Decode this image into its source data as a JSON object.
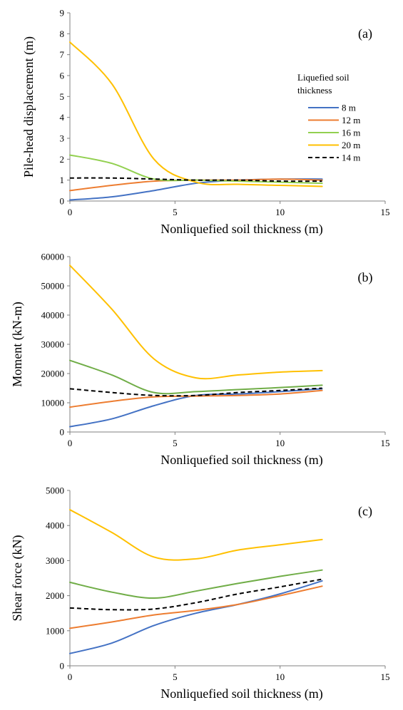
{
  "chart_data": [
    {
      "type": "line",
      "panel_label": "(a)",
      "xlabel": "Nonliquefied soil thickness (m)",
      "ylabel": "Pile-head displacement (m)",
      "xlim": [
        0,
        15
      ],
      "ylim": [
        0,
        9
      ],
      "xticks": [
        "0",
        "5",
        "10",
        "15"
      ],
      "yticks": [
        "0",
        "1",
        "2",
        "3",
        "4",
        "5",
        "6",
        "7",
        "8",
        "9"
      ],
      "legend": {
        "title_line1": "Liquefied soil",
        "title_line2": "thickness",
        "placement": "right-middle"
      },
      "series": [
        {
          "name": "8 m",
          "color": "#4472C4",
          "dashed": false,
          "x": [
            0,
            2,
            4,
            6,
            8,
            10,
            12
          ],
          "y": [
            0.05,
            0.2,
            0.5,
            0.85,
            1.0,
            1.05,
            1.05
          ]
        },
        {
          "name": "12 m",
          "color": "#ED7D31",
          "dashed": false,
          "x": [
            0,
            2,
            4,
            6,
            8,
            10,
            12
          ],
          "y": [
            0.5,
            0.75,
            0.95,
            1.0,
            1.0,
            1.05,
            1.0
          ]
        },
        {
          "name": "16 m",
          "color": "#92D050",
          "dashed": false,
          "x": [
            0,
            2,
            4,
            6,
            8,
            10,
            12
          ],
          "y": [
            2.2,
            1.8,
            1.05,
            1.0,
            0.95,
            0.9,
            0.85
          ]
        },
        {
          "name": "20 m",
          "color": "#FFC000",
          "dashed": false,
          "x": [
            0,
            2,
            4,
            6,
            8,
            10,
            12
          ],
          "y": [
            7.6,
            5.6,
            2.0,
            0.9,
            0.8,
            0.75,
            0.7
          ]
        },
        {
          "name": "14 m",
          "color": "#000000",
          "dashed": true,
          "x": [
            0,
            2,
            4,
            6,
            8,
            10,
            12
          ],
          "y": [
            1.1,
            1.1,
            1.05,
            1.0,
            1.0,
            0.95,
            0.95
          ]
        }
      ]
    },
    {
      "type": "line",
      "panel_label": "(b)",
      "xlabel": "Nonliquefied soil thickness (m)",
      "ylabel": "Moment (kN-m)",
      "xlim": [
        0,
        15
      ],
      "ylim": [
        0,
        60000
      ],
      "xticks": [
        "0",
        "5",
        "10",
        "15"
      ],
      "yticks": [
        "0",
        "10000",
        "20000",
        "30000",
        "40000",
        "50000",
        "60000"
      ],
      "series": [
        {
          "name": "8 m",
          "color": "#4472C4",
          "dashed": false,
          "x": [
            0,
            2,
            4,
            6,
            8,
            10,
            12
          ],
          "y": [
            1800,
            4500,
            9000,
            12500,
            13000,
            13800,
            14800
          ]
        },
        {
          "name": "12 m",
          "color": "#ED7D31",
          "dashed": false,
          "x": [
            0,
            2,
            4,
            6,
            8,
            10,
            12
          ],
          "y": [
            8500,
            10500,
            12000,
            12300,
            12500,
            13000,
            14200
          ]
        },
        {
          "name": "16 m",
          "color": "#70AD47",
          "dashed": false,
          "x": [
            0,
            2,
            4,
            6,
            8,
            10,
            12
          ],
          "y": [
            24500,
            19500,
            13500,
            13800,
            14500,
            15200,
            16000
          ]
        },
        {
          "name": "20 m",
          "color": "#FFC000",
          "dashed": false,
          "x": [
            0,
            2,
            4,
            6,
            8,
            10,
            12
          ],
          "y": [
            57000,
            42000,
            25000,
            18500,
            19500,
            20500,
            21000
          ]
        },
        {
          "name": "14 m",
          "color": "#000000",
          "dashed": true,
          "x": [
            0,
            2,
            4,
            6,
            8,
            10,
            12
          ],
          "y": [
            14800,
            13500,
            12500,
            12500,
            13500,
            14200,
            15000
          ]
        }
      ]
    },
    {
      "type": "line",
      "panel_label": "(c)",
      "xlabel": "Nonliquefied soil thickness (m)",
      "ylabel": "Shear force (kN)",
      "xlim": [
        0,
        15
      ],
      "ylim": [
        0,
        5000
      ],
      "xticks": [
        "0",
        "5",
        "10",
        "15"
      ],
      "yticks": [
        "0",
        "1000",
        "2000",
        "3000",
        "4000",
        "5000"
      ],
      "series": [
        {
          "name": "8 m",
          "color": "#4472C4",
          "dashed": false,
          "x": [
            0,
            2,
            4,
            6,
            8,
            10,
            12
          ],
          "y": [
            350,
            650,
            1150,
            1500,
            1750,
            2050,
            2420
          ]
        },
        {
          "name": "12 m",
          "color": "#ED7D31",
          "dashed": false,
          "x": [
            0,
            2,
            4,
            6,
            8,
            10,
            12
          ],
          "y": [
            1070,
            1250,
            1450,
            1580,
            1750,
            2000,
            2270
          ]
        },
        {
          "name": "16 m",
          "color": "#70AD47",
          "dashed": false,
          "x": [
            0,
            2,
            4,
            6,
            8,
            10,
            12
          ],
          "y": [
            2380,
            2100,
            1930,
            2130,
            2350,
            2550,
            2730
          ]
        },
        {
          "name": "20 m",
          "color": "#FFC000",
          "dashed": false,
          "x": [
            0,
            2,
            4,
            6,
            8,
            10,
            12
          ],
          "y": [
            4450,
            3800,
            3100,
            3050,
            3300,
            3450,
            3600
          ]
        },
        {
          "name": "14 m",
          "color": "#000000",
          "dashed": true,
          "x": [
            0,
            2,
            4,
            6,
            8,
            10,
            12
          ],
          "y": [
            1650,
            1600,
            1620,
            1800,
            2050,
            2250,
            2470
          ]
        }
      ]
    }
  ]
}
